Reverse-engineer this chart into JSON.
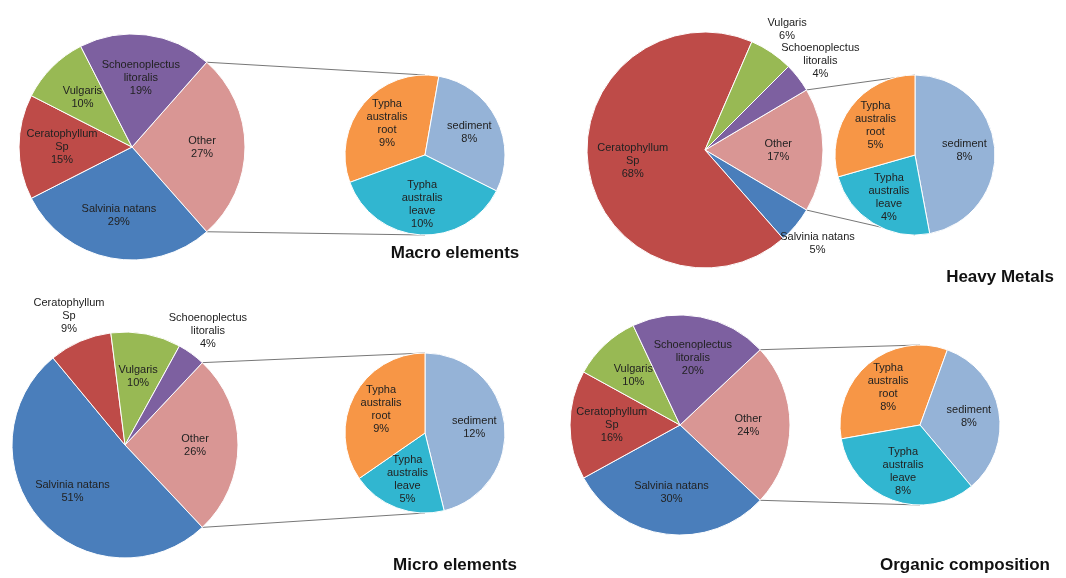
{
  "chart_data": [
    {
      "type": "pie",
      "categories": [
        "Other",
        "Salvinia natans",
        "Ceratophyllum Sp",
        "Vulgaris",
        "Schoenoplectus litoralis"
      ],
      "values": [
        27,
        29,
        15,
        10,
        19
      ],
      "colors": [
        "#d99694",
        "#4a7ebb",
        "#be4b48",
        "#98b954",
        "#7d60a0"
      ],
      "value_labels": [
        "27%",
        "29%",
        "15%",
        "10%",
        "19%"
      ]
    },
    {
      "type": "pie",
      "title": "Macro elements",
      "categories": [
        "Typha australis root",
        "sediment",
        "Typha australis leave"
      ],
      "values": [
        9,
        8,
        10
      ],
      "colors": [
        "#f79646",
        "#95b3d7",
        "#31b6d0"
      ],
      "value_labels": [
        "9%",
        "8%",
        "10%"
      ]
    },
    {
      "type": "pie",
      "categories": [
        "Other",
        "Salvinia natans",
        "Ceratophyllum Sp",
        "Vulgaris",
        "Schoenoplectus litoralis"
      ],
      "values": [
        17,
        5,
        68,
        6,
        4
      ],
      "colors": [
        "#d99694",
        "#4a7ebb",
        "#be4b48",
        "#98b954",
        "#7d60a0"
      ],
      "value_labels": [
        "17%",
        "5%",
        "68%",
        "6%",
        "4%"
      ]
    },
    {
      "type": "pie",
      "title": "Heavy Metals",
      "categories": [
        "sediment",
        "Typha australis leave",
        "Typha australis root"
      ],
      "values": [
        8,
        4,
        5
      ],
      "colors": [
        "#95b3d7",
        "#31b6d0",
        "#f79646"
      ],
      "value_labels": [
        "8%",
        "4%",
        "5%"
      ]
    },
    {
      "type": "pie",
      "categories": [
        "Other",
        "Salvinia natans",
        "Ceratophyllum Sp",
        "Vulgaris",
        "Schoenoplectus litoralis"
      ],
      "values": [
        26,
        51,
        9,
        10,
        4
      ],
      "colors": [
        "#d99694",
        "#4a7ebb",
        "#be4b48",
        "#98b954",
        "#7d60a0"
      ],
      "value_labels": [
        "26%",
        "51%",
        "9%",
        "10%",
        "4%"
      ]
    },
    {
      "type": "pie",
      "title": "Micro elements",
      "categories": [
        "sediment",
        "Typha australis leave",
        "Typha australis root"
      ],
      "values": [
        12,
        5,
        9
      ],
      "colors": [
        "#95b3d7",
        "#31b6d0",
        "#f79646"
      ],
      "value_labels": [
        "12%",
        "5%",
        "9%"
      ]
    },
    {
      "type": "pie",
      "categories": [
        "Other",
        "Salvinia natans",
        "Ceratophyllum Sp",
        "Vulgaris",
        "Schoenoplectus litoralis"
      ],
      "values": [
        24,
        30,
        16,
        10,
        20
      ],
      "colors": [
        "#d99694",
        "#4a7ebb",
        "#be4b48",
        "#98b954",
        "#7d60a0"
      ],
      "value_labels": [
        "24%",
        "30%",
        "16%",
        "10%",
        "20%"
      ]
    },
    {
      "type": "pie",
      "title": "Organic composition",
      "categories": [
        "Typha australis root",
        "sediment",
        "Typha australis leave"
      ],
      "values": [
        8,
        8,
        8
      ],
      "colors": [
        "#f79646",
        "#95b3d7",
        "#31b6d0"
      ],
      "value_labels": [
        "8%",
        "8%",
        "8%"
      ]
    }
  ]
}
